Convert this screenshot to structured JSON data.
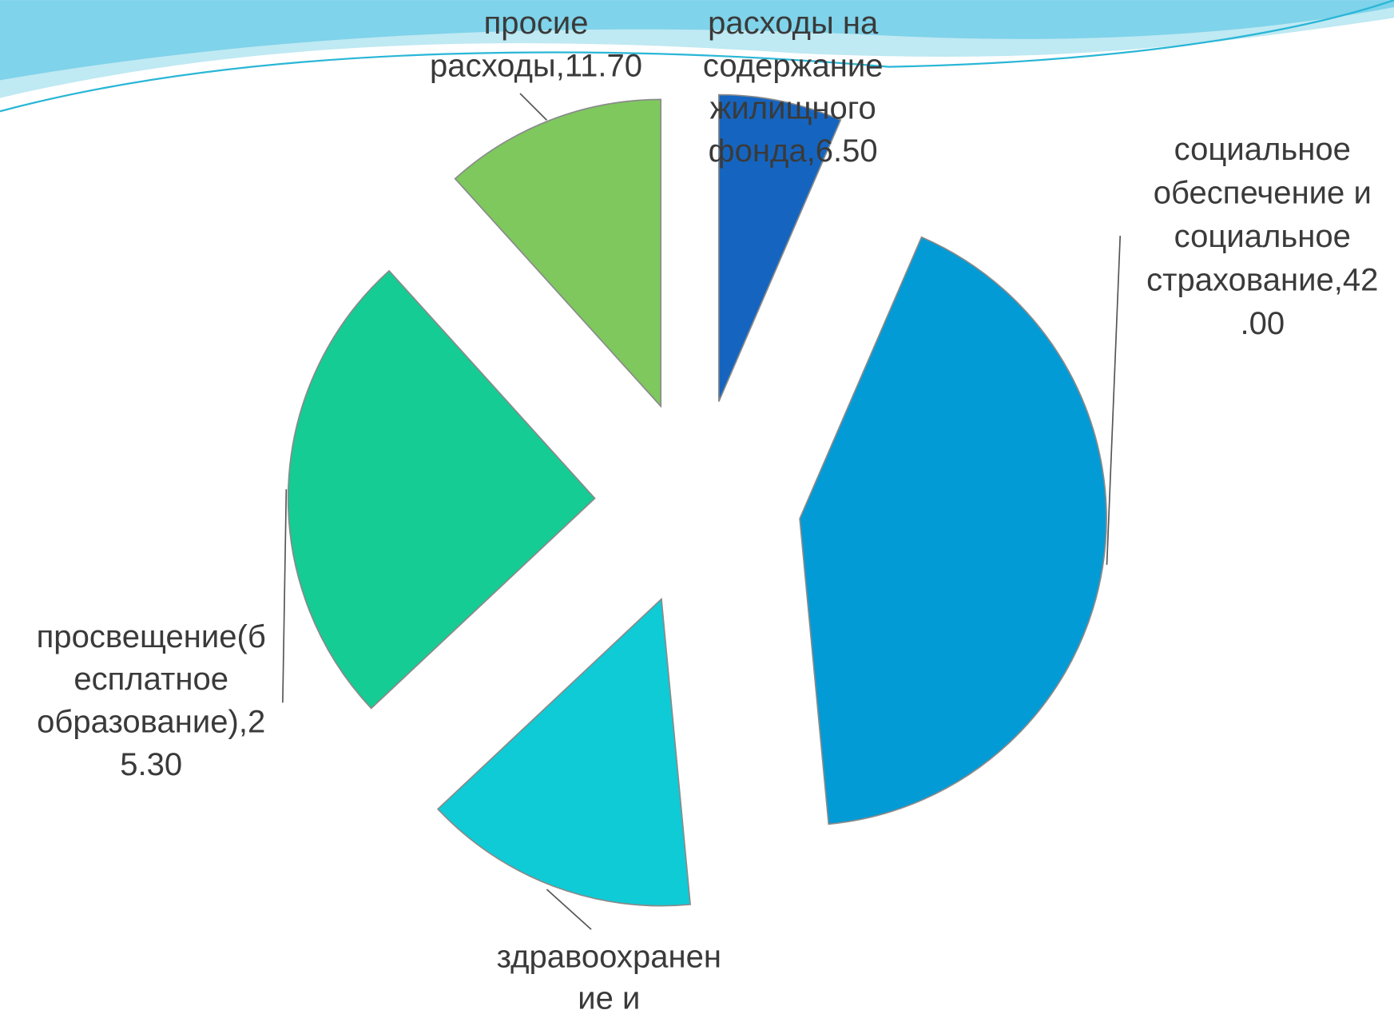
{
  "chart_data": {
    "type": "pie",
    "labels": [
      [
        "расходы на",
        "содержание",
        "жилищного",
        "фонда,6.50"
      ],
      [
        "социальное",
        "обеспечение и",
        "социальное",
        "страхование,42",
        ".00"
      ],
      [
        "здравоохранен",
        "ие и"
      ],
      [
        "просвещение(б",
        "есплатное",
        "образование),2",
        "5.30"
      ],
      [
        "просие",
        "расходы,11.70"
      ]
    ],
    "values": [
      6.5,
      42.0,
      14.5,
      25.3,
      11.7
    ],
    "colors": [
      "#1565c0",
      "#039bd6",
      "#0ecbd6",
      "#14cc94",
      "#7ec85e"
    ]
  }
}
